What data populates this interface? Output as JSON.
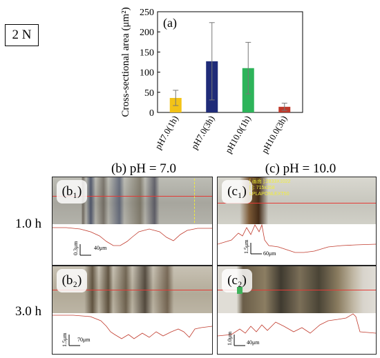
{
  "load_label": "2 N",
  "chart_data": {
    "type": "bar",
    "panel_label": "(a)",
    "ylabel": "Cross-sectional area (μm²)",
    "ylim": [
      0,
      250
    ],
    "yticks": [
      "0",
      "50",
      "100",
      "150",
      "200",
      "250"
    ],
    "categories": [
      "pH7.0(1h)",
      "pH7.0(3h)",
      "pH10.0(1h)",
      "pH10.0(3h)"
    ],
    "values": [
      36,
      127,
      110,
      14
    ],
    "errors": [
      19,
      96,
      64,
      9
    ],
    "colors": [
      "#f3c317",
      "#1f2b78",
      "#2db45a",
      "#c0392b"
    ],
    "grid": false
  },
  "columns": {
    "b": "(b) pH = 7.0",
    "c": "(c) pH = 10.0"
  },
  "rows": {
    "r1": "1.0 h",
    "r2": "3.0 h"
  },
  "panels": {
    "b1": {
      "label": "(b₁)",
      "scale_x": "40μm",
      "scale_y": "0.3μm"
    },
    "b2": {
      "label": "(b₂)",
      "scale_x": "70μm",
      "scale_y": "1.5μm"
    },
    "c1": {
      "label": "(c₁)",
      "scale_x": "60μm",
      "scale_y": "1.5μm",
      "overlay": [
        "[ 画面 ]:2833X1022",
        "[ ]: 715x258",
        "LPLAPONLEXT50"
      ]
    },
    "c2": {
      "label": "(c₂)",
      "scale_x": "40μm",
      "scale_y": "1.0μm"
    }
  },
  "colors": {
    "profile": "#c0392b",
    "cut_line": "#e53935",
    "overlay_text": "#f2ee3a"
  }
}
